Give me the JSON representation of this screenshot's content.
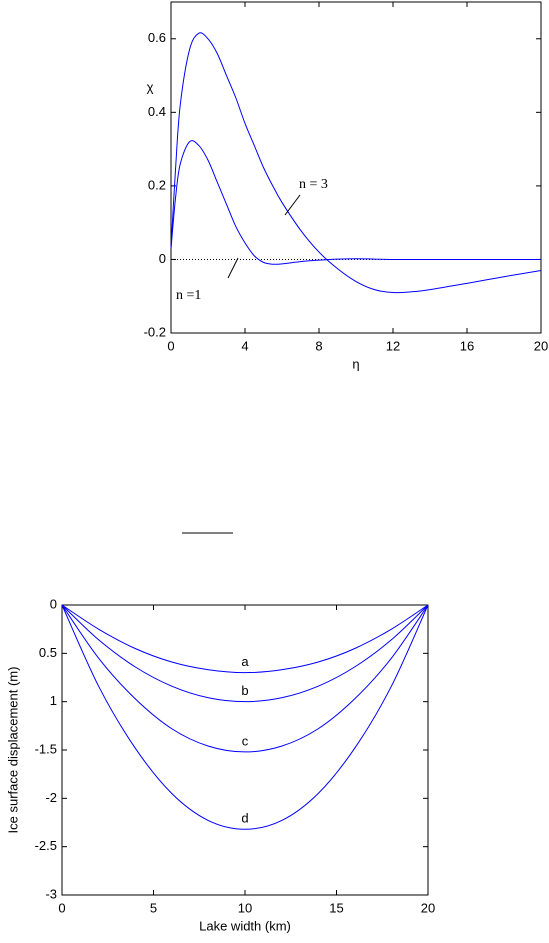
{
  "chart_data": [
    {
      "type": "line",
      "x_label": "η",
      "y_label": "χ",
      "x": [
        0,
        0.25,
        0.5,
        1,
        1.5,
        2,
        2.5,
        3,
        3.5,
        4,
        4.5,
        5,
        5.5,
        6,
        7,
        8,
        9,
        10,
        11,
        12,
        13,
        14,
        16,
        18,
        20
      ],
      "series": [
        {
          "name": "n =1",
          "color": "#0000ff",
          "values": [
            0.03,
            0.17,
            0.26,
            0.32,
            0.31,
            0.27,
            0.21,
            0.15,
            0.09,
            0.045,
            0.01,
            -0.008,
            -0.013,
            -0.012,
            -0.006,
            -0.002,
            0.001,
            0.002,
            0.001,
            0,
            0,
            0,
            0,
            0,
            0
          ]
        },
        {
          "name": "n = 3",
          "color": "#0000ff",
          "values": [
            0.03,
            0.25,
            0.42,
            0.57,
            0.615,
            0.6,
            0.56,
            0.5,
            0.44,
            0.37,
            0.31,
            0.25,
            0.2,
            0.155,
            0.08,
            0.02,
            -0.025,
            -0.06,
            -0.082,
            -0.09,
            -0.088,
            -0.082,
            -0.065,
            -0.047,
            -0.03
          ]
        }
      ],
      "xlim": [
        0,
        20
      ],
      "xticks": [
        0,
        4,
        8,
        12,
        16,
        20
      ],
      "ylim": [
        -0.2,
        0.7
      ],
      "yticks": [
        -0.2,
        0,
        0.2,
        0.4,
        0.6
      ],
      "zero_line": true
    },
    {
      "type": "line",
      "x_label": "Lake width (km)",
      "y_label": "Ice surface displacement (m)",
      "x": [
        0,
        2,
        4,
        6,
        8,
        10,
        12,
        14,
        16,
        18,
        20
      ],
      "series": [
        {
          "name": "a",
          "color": "#0000ff",
          "values": [
            0,
            -0.25,
            -0.45,
            -0.59,
            -0.67,
            -0.7,
            -0.67,
            -0.59,
            -0.45,
            -0.25,
            0
          ]
        },
        {
          "name": "b",
          "color": "#0000ff",
          "values": [
            0,
            -0.36,
            -0.64,
            -0.84,
            -0.96,
            -1.0,
            -0.96,
            -0.84,
            -0.64,
            -0.36,
            0
          ]
        },
        {
          "name": "c",
          "color": "#0000ff",
          "values": [
            0,
            -0.55,
            -0.97,
            -1.28,
            -1.46,
            -1.52,
            -1.46,
            -1.28,
            -0.97,
            -0.55,
            0
          ]
        },
        {
          "name": "d",
          "color": "#0000ff",
          "values": [
            0,
            -0.84,
            -1.48,
            -1.95,
            -2.23,
            -2.32,
            -2.23,
            -1.95,
            -1.48,
            -0.84,
            0
          ]
        }
      ],
      "xlim": [
        0,
        20
      ],
      "xticks": [
        0,
        5,
        10,
        15,
        20
      ],
      "ylim": [
        -3,
        0
      ],
      "yticks": [
        0,
        {
          "value": -0.5,
          "label": "0.5"
        },
        {
          "value": -1,
          "label": "1"
        },
        -1.5,
        -2,
        -2.5,
        -3
      ]
    }
  ]
}
